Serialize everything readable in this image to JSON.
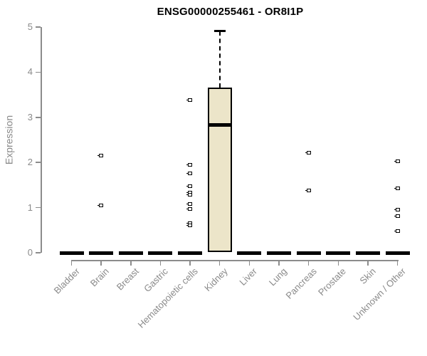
{
  "chart_data": {
    "type": "boxplot",
    "title": "ENSG00000255461 - OR8I1P",
    "xlabel": "",
    "ylabel": "Expression",
    "ylim": [
      0,
      5
    ],
    "yticks": [
      0,
      1,
      2,
      3,
      4,
      5
    ],
    "grid": false,
    "frame": "left-bottom-axes-only",
    "categories": [
      "Bladder",
      "Brain",
      "Breast",
      "Gastric",
      "Hematopoietic cells",
      "Kidney",
      "Liver",
      "Lung",
      "Pancreas",
      "Prostate",
      "Skin",
      "Unknown / Other"
    ],
    "boxes": [
      {
        "category": "Bladder",
        "q1": 0,
        "median": 0,
        "q3": 0,
        "whisker_low": 0,
        "whisker_high": 0,
        "outliers": []
      },
      {
        "category": "Brain",
        "q1": 0,
        "median": 0,
        "q3": 0,
        "whisker_low": 0,
        "whisker_high": 0,
        "outliers": [
          2.16,
          1.05
        ]
      },
      {
        "category": "Breast",
        "q1": 0,
        "median": 0,
        "q3": 0,
        "whisker_low": 0,
        "whisker_high": 0,
        "outliers": []
      },
      {
        "category": "Gastric",
        "q1": 0,
        "median": 0,
        "q3": 0,
        "whisker_low": 0,
        "whisker_high": 0,
        "outliers": []
      },
      {
        "category": "Hematopoietic cells",
        "q1": 0,
        "median": 0,
        "q3": 0,
        "whisker_low": 0,
        "whisker_high": 0,
        "outliers": [
          3.39,
          1.95,
          1.76,
          1.47,
          1.34,
          1.28,
          1.08,
          0.97,
          0.66,
          0.6
        ]
      },
      {
        "category": "Kidney",
        "q1": 0.02,
        "median": 2.83,
        "q3": 3.66,
        "whisker_low": 0.02,
        "whisker_high": 4.91,
        "outliers": []
      },
      {
        "category": "Liver",
        "q1": 0,
        "median": 0,
        "q3": 0,
        "whisker_low": 0,
        "whisker_high": 0,
        "outliers": []
      },
      {
        "category": "Lung",
        "q1": 0,
        "median": 0,
        "q3": 0,
        "whisker_low": 0,
        "whisker_high": 0,
        "outliers": []
      },
      {
        "category": "Pancreas",
        "q1": 0,
        "median": 0,
        "q3": 0,
        "whisker_low": 0,
        "whisker_high": 0,
        "outliers": [
          2.22,
          1.38
        ]
      },
      {
        "category": "Prostate",
        "q1": 0,
        "median": 0,
        "q3": 0,
        "whisker_low": 0,
        "whisker_high": 0,
        "outliers": []
      },
      {
        "category": "Skin",
        "q1": 0,
        "median": 0,
        "q3": 0,
        "whisker_low": 0,
        "whisker_high": 0,
        "outliers": []
      },
      {
        "category": "Unknown / Other",
        "q1": 0,
        "median": 0,
        "q3": 0,
        "whisker_low": 0,
        "whisker_high": 0,
        "outliers": [
          2.02,
          1.42,
          0.95,
          0.82,
          0.48
        ]
      }
    ],
    "colors": {
      "box_fill": "#ece5c9",
      "box_border": "#000000",
      "median": "#000000",
      "zero_bar": "#000000",
      "axis": "#8c8c8c",
      "tick_label": "#8a8a8a",
      "title": "#000000",
      "background": "#ffffff"
    }
  }
}
